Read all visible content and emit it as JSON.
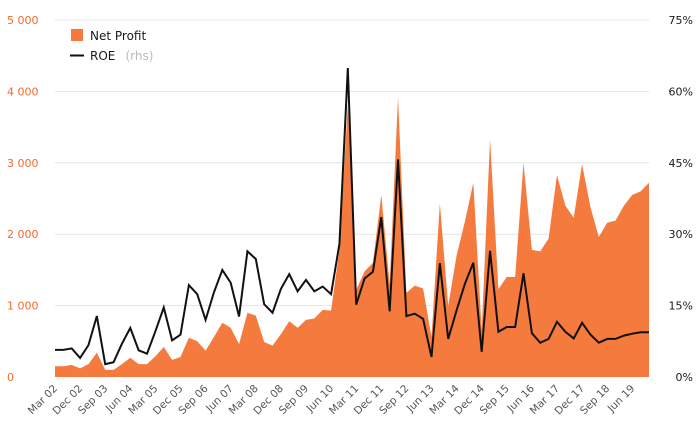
{
  "chart_data": {
    "type": "area",
    "colors": {
      "area": "#f47a3e",
      "line": "#111111",
      "left_axis_text": "#f26b2c",
      "grid": "#e4e4e4"
    },
    "y_left": {
      "ticks": [
        "0",
        "1 000",
        "2 000",
        "3 000",
        "4 000",
        "5 000"
      ],
      "tick_values": [
        0,
        1000,
        2000,
        3000,
        4000,
        5000
      ],
      "range": [
        0,
        5000
      ]
    },
    "y_right": {
      "ticks": [
        "0%",
        "15%",
        "30%",
        "45%",
        "60%",
        "75%"
      ],
      "tick_values": [
        0,
        15,
        30,
        45,
        60,
        75
      ],
      "range": [
        0,
        75
      ]
    },
    "x_labels": [
      "Mar 02",
      "Dec 02",
      "Sep 03",
      "Jun 04",
      "Mar 05",
      "Dec 05",
      "Sep 06",
      "Jun 07",
      "Mar 08",
      "Dec 08",
      "Sep 09",
      "Jun 10",
      "Mar 11",
      "Dec 11",
      "Sep 12",
      "Jun 13",
      "Mar 14",
      "Dec 14",
      "Sep 15",
      "Jun 16",
      "Mar 17",
      "Dec 17",
      "Sep 18",
      "Jun 19"
    ],
    "x_label_step": 3,
    "grid": true,
    "legend": {
      "position": "top-left",
      "area_label": "Net Profit",
      "line_label": "ROE",
      "line_suffix": "(rhs)"
    },
    "series": [
      {
        "name": "Net Profit",
        "kind": "area",
        "values": [
          150,
          150,
          170,
          120,
          180,
          340,
          100,
          100,
          180,
          270,
          180,
          180,
          290,
          420,
          240,
          280,
          550,
          500,
          370,
          560,
          760,
          690,
          460,
          900,
          860,
          490,
          440,
          600,
          780,
          690,
          800,
          820,
          940,
          930,
          1780,
          3820,
          1220,
          1480,
          1600,
          2550,
          1300,
          3920,
          1180,
          1280,
          1240,
          560,
          2430,
          1000,
          1700,
          2180,
          2720,
          660,
          3330,
          1230,
          1400,
          1400,
          3000,
          1780,
          1760,
          1940,
          2830,
          2400,
          2230,
          2980,
          2380,
          1960,
          2160,
          2190,
          2400,
          2550,
          2600,
          2720
        ]
      },
      {
        "name": "ROE",
        "kind": "line",
        "axis": "right",
        "values": [
          5.7,
          5.7,
          6.0,
          4.0,
          6.7,
          12.8,
          2.7,
          3.1,
          7.0,
          10.3,
          5.6,
          4.9,
          9.6,
          14.6,
          7.7,
          8.9,
          19.3,
          17.4,
          12.0,
          17.8,
          22.5,
          19.8,
          12.7,
          26.4,
          24.8,
          15.3,
          13.5,
          18.5,
          21.6,
          18.0,
          20.4,
          18.0,
          19.0,
          17.4,
          28.0,
          64.9,
          15.2,
          20.7,
          22.1,
          33.6,
          13.8,
          45.7,
          12.8,
          13.3,
          12.2,
          4.2,
          23.9,
          8.0,
          14.0,
          19.6,
          24.0,
          5.3,
          26.5,
          9.5,
          10.5,
          10.5,
          21.8,
          9.2,
          7.2,
          8.0,
          11.6,
          9.5,
          8.1,
          11.4,
          8.9,
          7.2,
          8.0,
          8.0,
          8.7,
          9.1,
          9.4,
          9.4
        ]
      }
    ]
  }
}
